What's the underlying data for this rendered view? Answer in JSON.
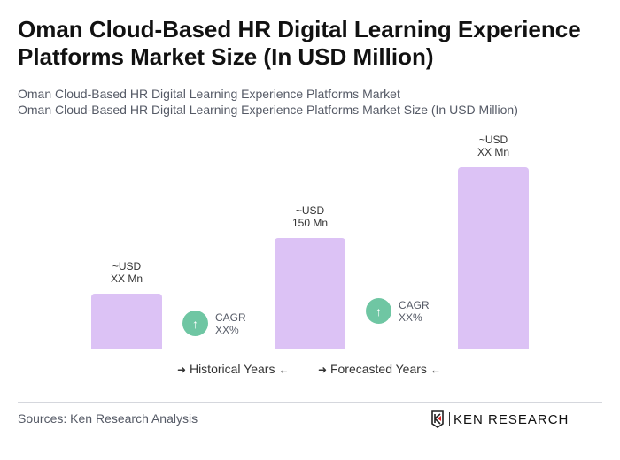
{
  "title": "Oman Cloud-Based HR Digital Learning Experience Platforms Market Size (In USD Million)",
  "subtitle1": "Oman Cloud-Based HR Digital Learning Experience Platforms Market",
  "subtitle2": "Oman Cloud-Based HR Digital Learning Experience Platforms Market Size (In USD Million)",
  "chart_data": {
    "type": "bar",
    "categories": [
      "",
      "",
      ""
    ],
    "values": [
      75,
      150,
      246
    ],
    "data_labels": [
      {
        "line1": "~USD",
        "line2": "XX Mn"
      },
      {
        "line1": "~USD",
        "line2": "150 Mn"
      },
      {
        "line1": "~USD",
        "line2": "XX Mn"
      }
    ],
    "bar_color": "#dcc2f5",
    "grid": false,
    "cagr": [
      {
        "label": "CAGR",
        "value": "XX%"
      },
      {
        "label": "CAGR",
        "value": "XX%"
      }
    ],
    "cagr_color": "#6fc6a3",
    "legend": [
      "Historical Years",
      "Forecasted Years"
    ]
  },
  "source": "Sources: Ken Research Analysis",
  "logo": "KEN RESEARCH"
}
